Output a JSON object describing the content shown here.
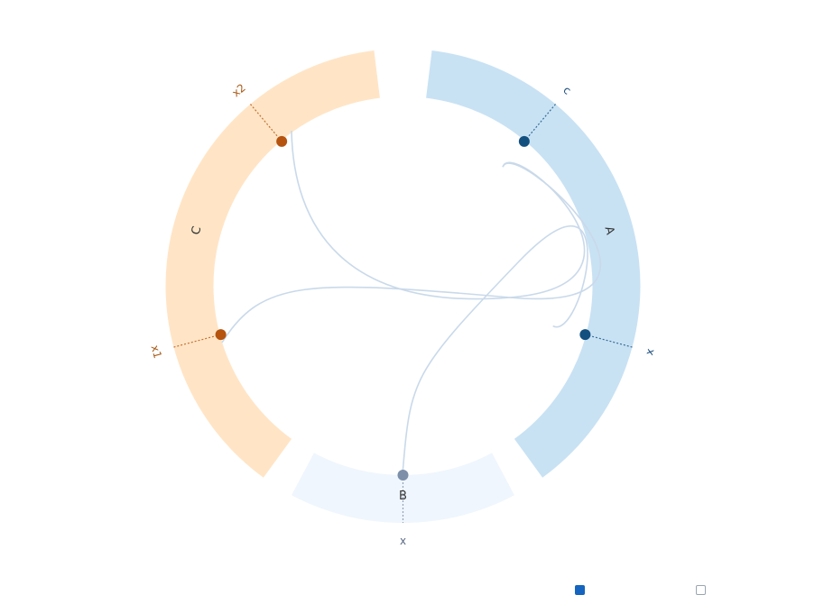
{
  "colors": {
    "orange_fill": "#ffe5c6",
    "orange_dot": "#b5530f",
    "orange_text": "#a85a16",
    "blue_fill": "#c8e2f4",
    "blue_dot": "#13507f",
    "blue_text": "#1d4f7d",
    "light_fill": "#eff6fd",
    "gray_dot": "#7d8fa9",
    "gray_text": "#5a6a85",
    "link": "#c9d9ea",
    "legend_on": "#1565c0",
    "legend_off": "#9aa6b2"
  },
  "segments": [
    {
      "id": "A",
      "label": "A",
      "color_key": "blue"
    },
    {
      "id": "B",
      "label": "B",
      "color_key": "light"
    },
    {
      "id": "C",
      "label": "C",
      "color_key": "orange"
    }
  ],
  "ports": [
    {
      "id": "A.c",
      "label": "c",
      "group": "A"
    },
    {
      "id": "A.x",
      "label": "x",
      "group": "A"
    },
    {
      "id": "B.x",
      "label": "x",
      "group": "B"
    },
    {
      "id": "C.x1",
      "label": "x1",
      "group": "C"
    },
    {
      "id": "C.x2",
      "label": "x2",
      "group": "C"
    }
  ],
  "links": [
    {
      "from": "C.x2",
      "to": "A.c"
    },
    {
      "from": "C.x1",
      "to": "A.c"
    },
    {
      "from": "B.x",
      "to": "A.x"
    }
  ],
  "legend": [
    {
      "state": "checked",
      "icon": "checkbox-checked-icon"
    },
    {
      "state": "unchecked",
      "icon": "checkbox-unchecked-icon"
    }
  ]
}
